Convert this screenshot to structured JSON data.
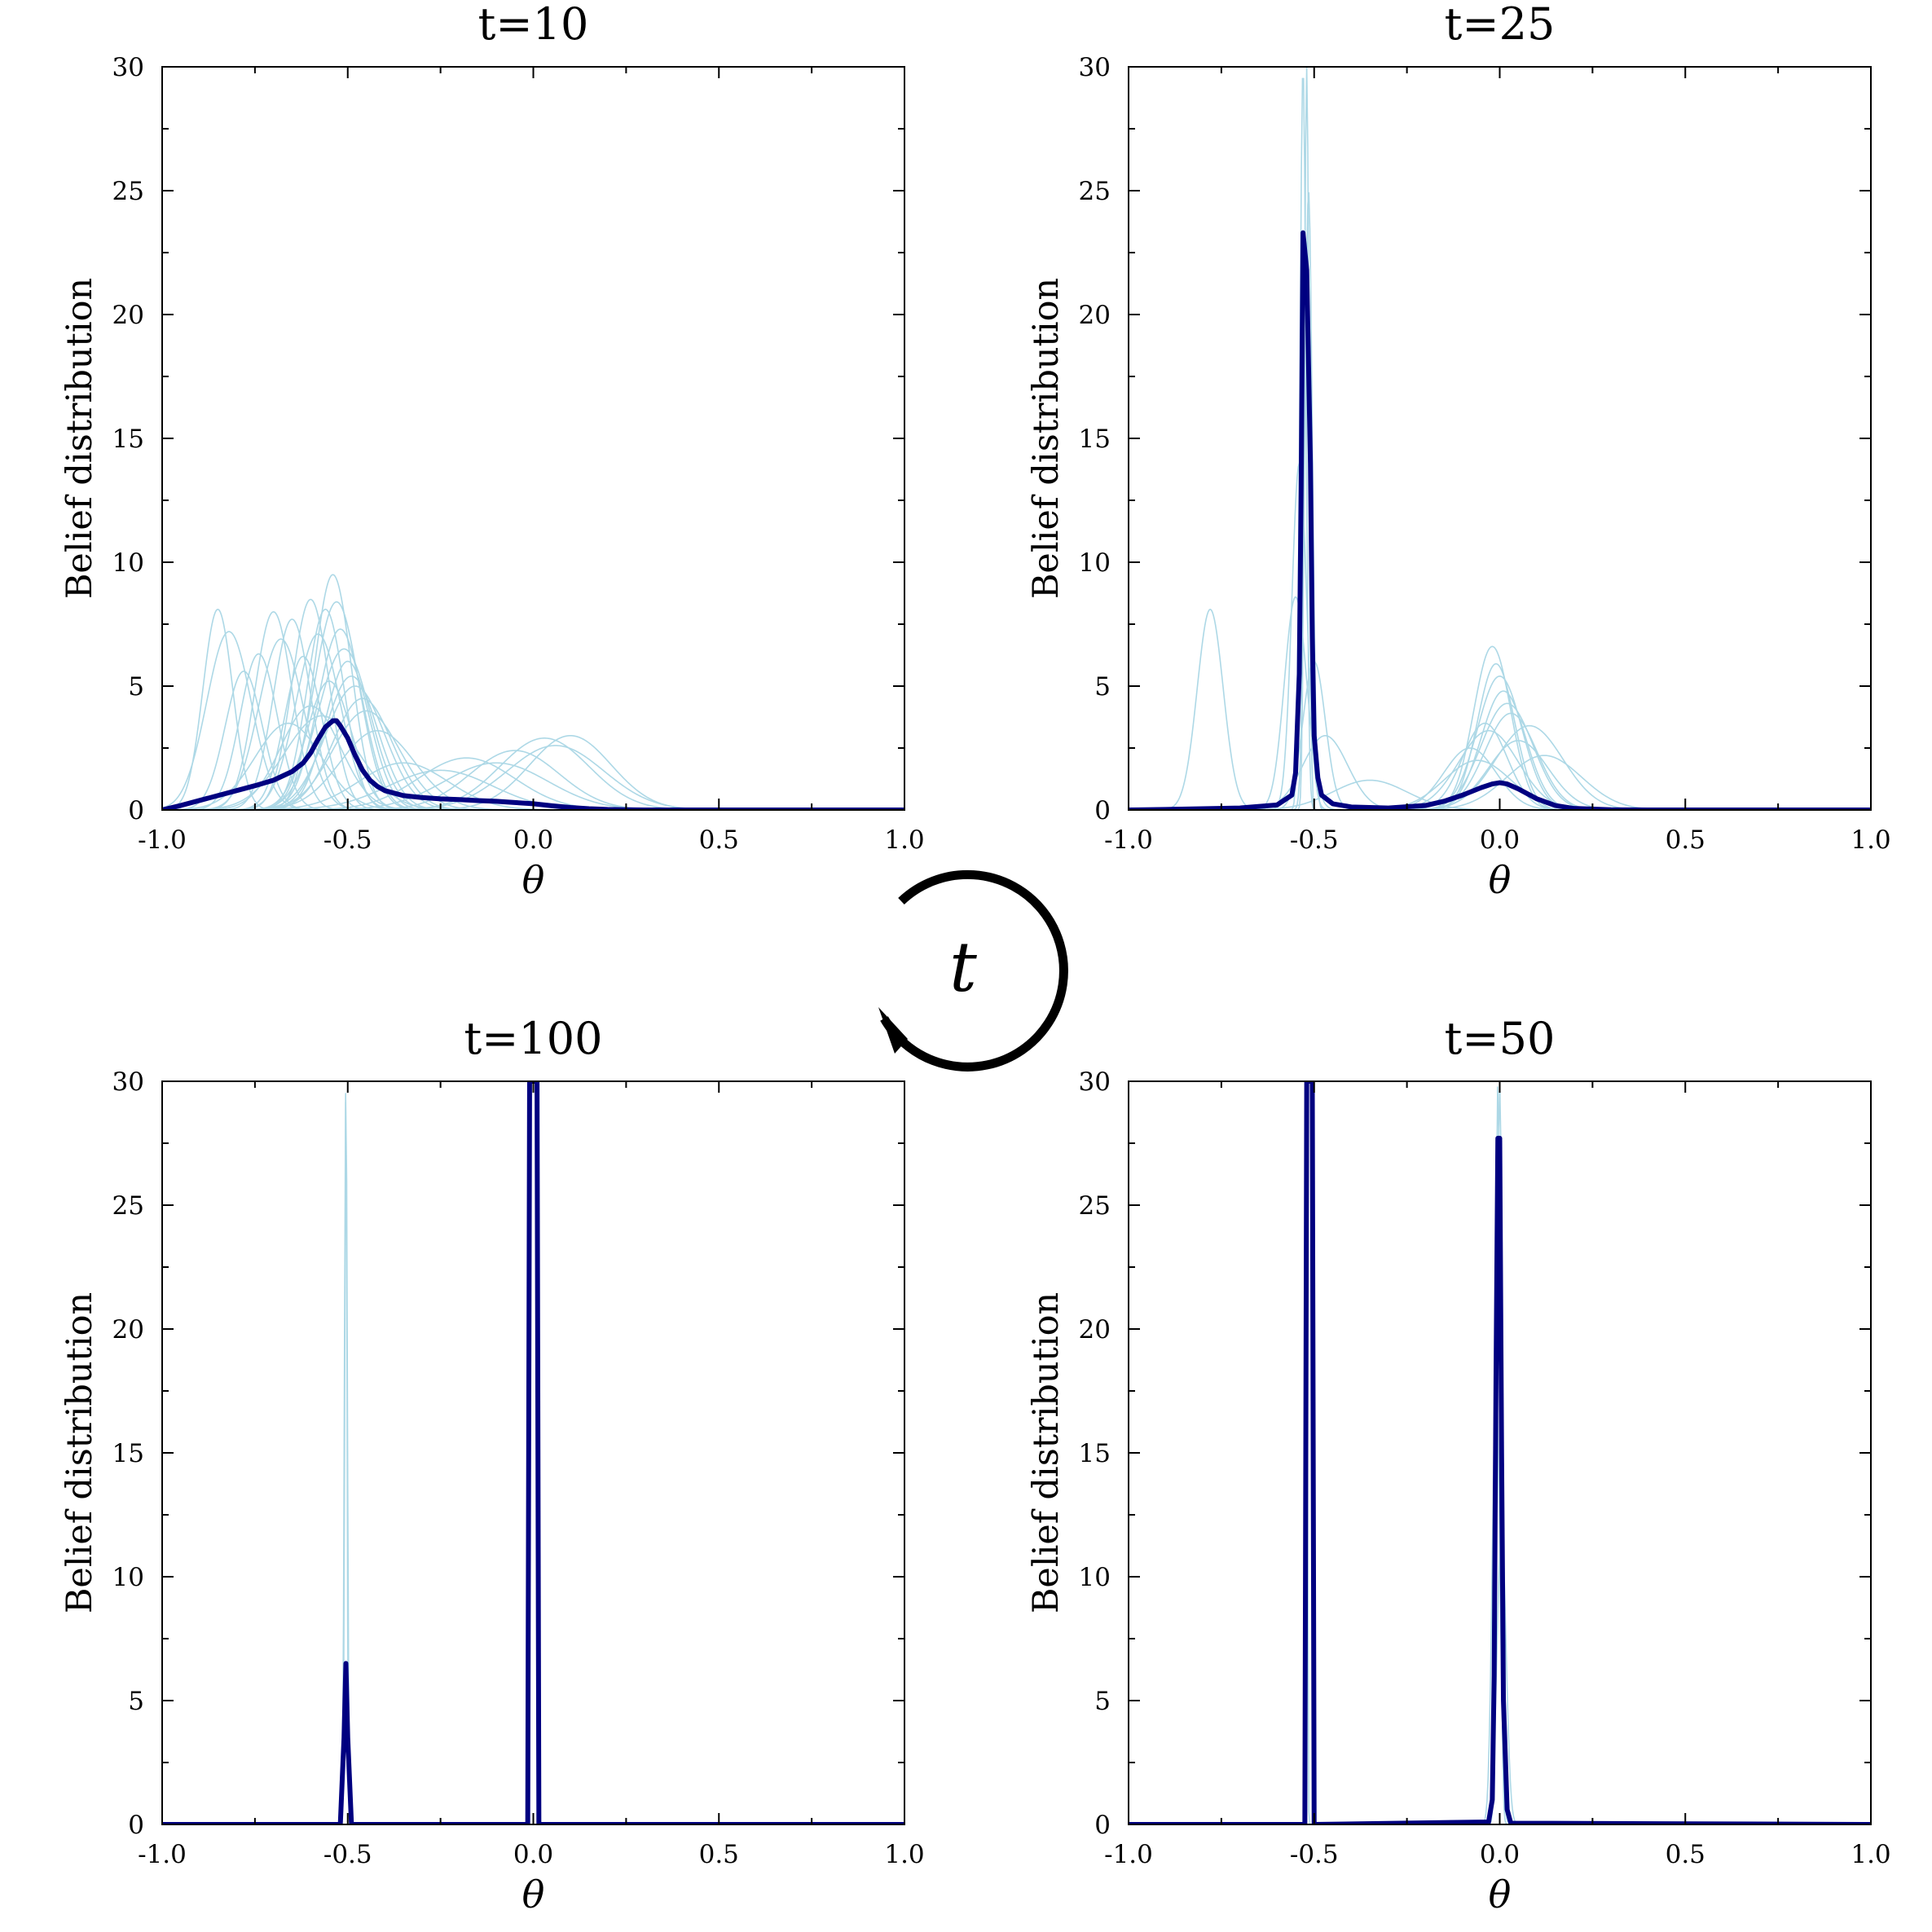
{
  "cycle_label": "t",
  "chart_data": [
    {
      "type": "line",
      "title": "t=10",
      "xlabel": "θ",
      "ylabel": "Belief distribution",
      "xlim": [
        -1.0,
        1.0
      ],
      "ylim": [
        0,
        30
      ],
      "xticks": [
        "-1.0",
        "-0.5",
        "0.0",
        "0.5",
        "1.0"
      ],
      "yticks": [
        "0",
        "5",
        "10",
        "15",
        "20",
        "25",
        "30"
      ],
      "mean_curve_color": "#000080",
      "individual_curve_color": "#add8e6",
      "individual_beliefs": [
        {
          "mu": -0.85,
          "sigma": 0.04,
          "peak": 8.1
        },
        {
          "mu": -0.82,
          "sigma": 0.06,
          "peak": 7.2
        },
        {
          "mu": -0.78,
          "sigma": 0.05,
          "peak": 5.6
        },
        {
          "mu": -0.74,
          "sigma": 0.05,
          "peak": 6.3
        },
        {
          "mu": -0.7,
          "sigma": 0.05,
          "peak": 8.0
        },
        {
          "mu": -0.68,
          "sigma": 0.06,
          "peak": 6.9
        },
        {
          "mu": -0.65,
          "sigma": 0.05,
          "peak": 7.7
        },
        {
          "mu": -0.62,
          "sigma": 0.05,
          "peak": 6.2
        },
        {
          "mu": -0.6,
          "sigma": 0.05,
          "peak": 8.5
        },
        {
          "mu": -0.58,
          "sigma": 0.06,
          "peak": 7.1
        },
        {
          "mu": -0.56,
          "sigma": 0.05,
          "peak": 8.1
        },
        {
          "mu": -0.55,
          "sigma": 0.06,
          "peak": 5.2
        },
        {
          "mu": -0.54,
          "sigma": 0.05,
          "peak": 9.5
        },
        {
          "mu": -0.53,
          "sigma": 0.06,
          "peak": 8.4
        },
        {
          "mu": -0.52,
          "sigma": 0.06,
          "peak": 7.3
        },
        {
          "mu": -0.51,
          "sigma": 0.07,
          "peak": 6.5
        },
        {
          "mu": -0.5,
          "sigma": 0.06,
          "peak": 6.0
        },
        {
          "mu": -0.49,
          "sigma": 0.07,
          "peak": 5.4
        },
        {
          "mu": -0.48,
          "sigma": 0.08,
          "peak": 5.0
        },
        {
          "mu": -0.46,
          "sigma": 0.08,
          "peak": 4.5
        },
        {
          "mu": -0.45,
          "sigma": 0.09,
          "peak": 4.0
        },
        {
          "mu": -0.42,
          "sigma": 0.1,
          "peak": 3.2
        },
        {
          "mu": -0.6,
          "sigma": 0.08,
          "peak": 4.2
        },
        {
          "mu": -0.66,
          "sigma": 0.09,
          "peak": 3.5
        },
        {
          "mu": -0.57,
          "sigma": 0.1,
          "peak": 3.8
        },
        {
          "mu": -0.35,
          "sigma": 0.12,
          "peak": 1.9
        },
        {
          "mu": -0.25,
          "sigma": 0.14,
          "peak": 1.6
        },
        {
          "mu": -0.18,
          "sigma": 0.13,
          "peak": 2.1
        },
        {
          "mu": -0.1,
          "sigma": 0.14,
          "peak": 1.9
        },
        {
          "mu": -0.05,
          "sigma": 0.12,
          "peak": 2.4
        },
        {
          "mu": 0.03,
          "sigma": 0.12,
          "peak": 2.9
        },
        {
          "mu": 0.06,
          "sigma": 0.13,
          "peak": 2.6
        },
        {
          "mu": 0.1,
          "sigma": 0.11,
          "peak": 3.0
        }
      ],
      "mean_curve": {
        "x": [
          -1.0,
          -0.95,
          -0.9,
          -0.85,
          -0.8,
          -0.75,
          -0.7,
          -0.65,
          -0.62,
          -0.6,
          -0.58,
          -0.56,
          -0.54,
          -0.53,
          -0.52,
          -0.5,
          -0.48,
          -0.46,
          -0.44,
          -0.42,
          -0.4,
          -0.35,
          -0.3,
          -0.25,
          -0.2,
          -0.15,
          -0.1,
          -0.05,
          0.0,
          0.05,
          0.1,
          0.15,
          0.2,
          0.25,
          0.3,
          0.4,
          0.5,
          0.6,
          0.8,
          1.0
        ],
        "y": [
          0.0,
          0.18,
          0.38,
          0.58,
          0.78,
          0.98,
          1.2,
          1.55,
          1.9,
          2.3,
          2.85,
          3.35,
          3.6,
          3.6,
          3.4,
          2.9,
          2.2,
          1.6,
          1.2,
          0.95,
          0.78,
          0.58,
          0.5,
          0.45,
          0.42,
          0.38,
          0.35,
          0.3,
          0.25,
          0.17,
          0.1,
          0.05,
          0.02,
          0.01,
          0.0,
          0.0,
          0.0,
          0.0,
          0.0,
          0.0
        ]
      }
    },
    {
      "type": "line",
      "title": "t=25",
      "xlabel": "θ",
      "ylabel": "Belief distribution",
      "xlim": [
        -1.0,
        1.0
      ],
      "ylim": [
        0,
        30
      ],
      "xticks": [
        "-1.0",
        "-0.5",
        "0.0",
        "0.5",
        "1.0"
      ],
      "yticks": [
        "0",
        "5",
        "10",
        "15",
        "20",
        "25",
        "30"
      ],
      "mean_curve_color": "#000080",
      "individual_curve_color": "#add8e6",
      "individual_beliefs": [
        {
          "mu": -0.78,
          "sigma": 0.035,
          "peak": 8.1
        },
        {
          "mu": -0.55,
          "sigma": 0.03,
          "peak": 8.6
        },
        {
          "mu": -0.54,
          "sigma": 0.02,
          "peak": 14.0
        },
        {
          "mu": -0.53,
          "sigma": 0.008,
          "peak": 30.0
        },
        {
          "mu": -0.52,
          "sigma": 0.006,
          "peak": 30.0
        },
        {
          "mu": -0.515,
          "sigma": 0.01,
          "peak": 25.0
        },
        {
          "mu": -0.5,
          "sigma": 0.03,
          "peak": 6.0
        },
        {
          "mu": -0.47,
          "sigma": 0.06,
          "peak": 3.0
        },
        {
          "mu": -0.35,
          "sigma": 0.1,
          "peak": 1.2
        },
        {
          "mu": -0.08,
          "sigma": 0.07,
          "peak": 2.5
        },
        {
          "mu": -0.04,
          "sigma": 0.06,
          "peak": 3.5
        },
        {
          "mu": -0.02,
          "sigma": 0.05,
          "peak": 6.6
        },
        {
          "mu": -0.01,
          "sigma": 0.05,
          "peak": 5.9
        },
        {
          "mu": 0.0,
          "sigma": 0.06,
          "peak": 5.4
        },
        {
          "mu": 0.01,
          "sigma": 0.06,
          "peak": 4.8
        },
        {
          "mu": 0.02,
          "sigma": 0.07,
          "peak": 4.3
        },
        {
          "mu": 0.03,
          "sigma": 0.07,
          "peak": 3.9
        },
        {
          "mu": -0.03,
          "sigma": 0.08,
          "peak": 3.2
        },
        {
          "mu": 0.05,
          "sigma": 0.08,
          "peak": 2.8
        },
        {
          "mu": 0.08,
          "sigma": 0.09,
          "peak": 3.4
        },
        {
          "mu": 0.12,
          "sigma": 0.1,
          "peak": 2.2
        },
        {
          "mu": -0.06,
          "sigma": 0.09,
          "peak": 2.0
        }
      ],
      "mean_curve": {
        "x": [
          -1.0,
          -0.9,
          -0.8,
          -0.7,
          -0.6,
          -0.56,
          -0.55,
          -0.54,
          -0.535,
          -0.53,
          -0.52,
          -0.51,
          -0.505,
          -0.5,
          -0.49,
          -0.48,
          -0.45,
          -0.4,
          -0.3,
          -0.2,
          -0.15,
          -0.1,
          -0.05,
          -0.02,
          0.0,
          0.02,
          0.05,
          0.1,
          0.15,
          0.2,
          0.3,
          0.4,
          0.6,
          0.8,
          1.0
        ],
        "y": [
          0.0,
          0.02,
          0.05,
          0.08,
          0.2,
          0.6,
          1.5,
          5.5,
          13.0,
          23.3,
          21.8,
          14.0,
          7.0,
          3.0,
          1.3,
          0.6,
          0.25,
          0.12,
          0.08,
          0.18,
          0.35,
          0.6,
          0.9,
          1.05,
          1.1,
          1.05,
          0.85,
          0.45,
          0.18,
          0.06,
          0.01,
          0.0,
          0.0,
          0.0,
          0.0
        ]
      }
    },
    {
      "type": "line",
      "title": "t=100",
      "xlabel": "θ",
      "ylabel": "Belief distribution",
      "xlim": [
        -1.0,
        1.0
      ],
      "ylim": [
        0,
        30
      ],
      "xticks": [
        "-1.0",
        "-0.5",
        "0.0",
        "0.5",
        "1.0"
      ],
      "yticks": [
        "0",
        "5",
        "10",
        "15",
        "20",
        "25",
        "30"
      ],
      "mean_curve_color": "#000080",
      "individual_curve_color": "#add8e6",
      "individual_beliefs": [
        {
          "mu": -0.505,
          "sigma": 0.003,
          "peak": 30.0
        },
        {
          "mu": -0.505,
          "sigma": 0.004,
          "peak": 30.0
        }
      ],
      "mean_curve": {
        "x": [
          -1.0,
          -0.52,
          -0.51,
          -0.505,
          -0.5,
          -0.49,
          -0.015,
          -0.01,
          -0.005,
          0.0,
          0.005,
          0.01,
          0.015,
          1.0
        ],
        "y": [
          0.0,
          0.0,
          3.5,
          6.5,
          3.5,
          0.0,
          0.0,
          30.0,
          30.0,
          30.0,
          30.0,
          30.0,
          0.0,
          0.0
        ]
      }
    },
    {
      "type": "line",
      "title": "t=50",
      "xlabel": "θ",
      "ylabel": "Belief distribution",
      "xlim": [
        -1.0,
        1.0
      ],
      "ylim": [
        0,
        30
      ],
      "xticks": [
        "-1.0",
        "-0.5",
        "0.0",
        "0.5",
        "1.0"
      ],
      "yticks": [
        "0",
        "5",
        "10",
        "15",
        "20",
        "25",
        "30"
      ],
      "mean_curve_color": "#000080",
      "individual_curve_color": "#add8e6",
      "individual_beliefs": [
        {
          "mu": -0.52,
          "sigma": 0.002,
          "peak": 30.0
        },
        {
          "mu": -0.005,
          "sigma": 0.006,
          "peak": 30.0
        },
        {
          "mu": 0.0,
          "sigma": 0.007,
          "peak": 30.0
        },
        {
          "mu": -0.01,
          "sigma": 0.01,
          "peak": 18.0
        },
        {
          "mu": 0.005,
          "sigma": 0.012,
          "peak": 12.0
        }
      ],
      "mean_curve": {
        "x": [
          -1.0,
          -0.525,
          -0.52,
          -0.515,
          -0.51,
          -0.505,
          -0.5,
          -0.03,
          -0.02,
          -0.015,
          -0.01,
          -0.005,
          0.0,
          0.005,
          0.01,
          0.02,
          0.03,
          1.0
        ],
        "y": [
          0.0,
          0.0,
          30.0,
          30.0,
          30.0,
          30.0,
          0.0,
          0.1,
          1.0,
          6.0,
          18.0,
          27.7,
          27.7,
          15.0,
          5.0,
          0.6,
          0.05,
          0.0
        ]
      }
    }
  ]
}
